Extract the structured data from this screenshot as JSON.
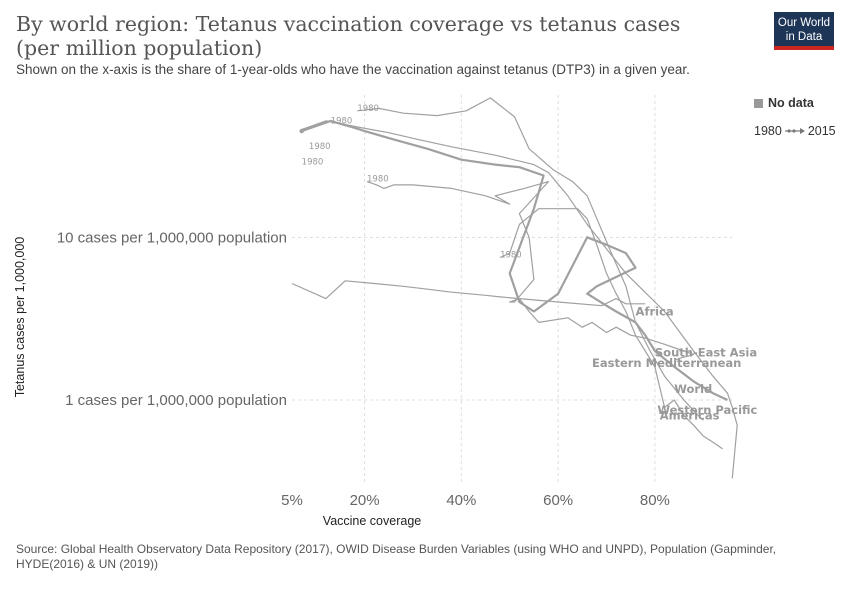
{
  "header": {
    "title": "By world region: Tetanus vaccination coverage vs tetanus cases (per million population)",
    "subtitle": "Shown on the x-axis is the share of 1-year-olds who have the vaccination against tetanus (DTP3) in a given year.",
    "logo_line1": "Our World",
    "logo_line2": "in Data",
    "logo_color": "#1d3557",
    "logo_accent": "#ce261e"
  },
  "legend": {
    "no_data_label": "No data",
    "no_data_color": "#999999",
    "time_start": "1980",
    "time_end": "2015"
  },
  "footer": {
    "source": "Source: Global Health Observatory Data Repository (2017), OWID Disease Burden Variables (using WHO and UNPD), Population (Gapminder, HYDE(2016) & UN (2019))"
  },
  "chart_data": {
    "type": "line",
    "title": "By world region: Tetanus vaccination coverage vs tetanus cases (per million population)",
    "xlabel": "Vaccine coverage",
    "ylabel": "Tetanus cases per 1,000,000",
    "x_scale": "linear",
    "y_scale": "log",
    "xlim": [
      5,
      98
    ],
    "ylim": [
      0.3,
      75
    ],
    "x_ticks": [
      {
        "value": 5,
        "label": "5%"
      },
      {
        "value": 20,
        "label": "20%"
      },
      {
        "value": 40,
        "label": "40%"
      },
      {
        "value": 60,
        "label": "60%"
      },
      {
        "value": 80,
        "label": "80%"
      }
    ],
    "y_ticks": [
      {
        "value": 10,
        "label": "10 cases per 1,000,000 population"
      },
      {
        "value": 1,
        "label": "1 cases per 1,000,000 population"
      }
    ],
    "grid": true,
    "line_color": "#a0a0a0",
    "start_year_label": "1980",
    "series": [
      {
        "name": "Africa",
        "label_at": [
          76,
          3.3
        ],
        "start_at": [
          8.5,
          35
        ],
        "x": [
          5,
          12,
          16,
          22,
          28,
          33,
          38,
          45,
          48,
          52,
          60,
          69,
          72,
          74,
          78
        ],
        "y": [
          5.2,
          4.2,
          5.4,
          5.2,
          5.0,
          4.8,
          4.6,
          4.4,
          4.3,
          4.2,
          4.0,
          3.8,
          4.2,
          3.9,
          3.9
        ]
      },
      {
        "name": "South-East Asia",
        "label_at": [
          80,
          1.85
        ],
        "start_at": [
          20.5,
          22
        ],
        "x": [
          20.5,
          22.5,
          24,
          26,
          30,
          38,
          45,
          50,
          47,
          53,
          58,
          52,
          54,
          55,
          51,
          50,
          52,
          54,
          56,
          62,
          65,
          67,
          70,
          72,
          75,
          78,
          82,
          86,
          88,
          85,
          84
        ],
        "y": [
          22,
          21,
          20,
          21,
          21,
          20,
          18,
          16,
          18,
          20,
          22,
          14,
          10,
          5.5,
          4.0,
          4.0,
          4.2,
          3.5,
          3.0,
          3.2,
          2.8,
          3.0,
          2.6,
          2.8,
          2.5,
          2.4,
          2.2,
          2.0,
          1.9,
          1.8,
          1.75
        ]
      },
      {
        "name": "Eastern Mediterranean",
        "label_at": [
          67,
          1.6
        ],
        "start_at": [
          7,
          28
        ],
        "x": [
          7,
          12,
          18,
          25,
          31,
          38,
          47,
          55,
          58,
          62,
          66,
          74,
          82,
          88,
          92,
          95,
          96,
          97,
          96
        ],
        "y": [
          46,
          52,
          48,
          44,
          40,
          36,
          32,
          28,
          25,
          18,
          12,
          6.0,
          3.5,
          2.0,
          1.4,
          1.1,
          0.9,
          0.7,
          0.33
        ]
      },
      {
        "name": "World",
        "label_at": [
          84,
          1.1
        ],
        "start_at": [
          13,
          50
        ],
        "x": [
          7,
          13,
          18,
          20,
          26,
          33,
          40,
          47,
          52,
          57,
          55,
          50,
          52,
          55,
          60,
          66,
          70,
          74,
          76,
          68,
          66,
          70,
          72,
          76,
          78,
          80,
          84,
          88,
          92,
          95
        ],
        "y": [
          45,
          52,
          47,
          45,
          40,
          35,
          30,
          28,
          27,
          24,
          15,
          6.0,
          4.0,
          3.5,
          4.5,
          10,
          9.0,
          8.0,
          6.5,
          5.0,
          4.5,
          3.8,
          3.5,
          3.0,
          2.5,
          2.0,
          1.6,
          1.3,
          1.1,
          1.0
        ]
      },
      {
        "name": "Western Pacific",
        "label_at": [
          80.5,
          0.82
        ],
        "start_at": [
          18.5,
          60
        ],
        "x": [
          18.5,
          23,
          28,
          35,
          41,
          46,
          51,
          54,
          59,
          63,
          66,
          71,
          74,
          76,
          79,
          82,
          86,
          89,
          90
        ],
        "y": [
          60,
          62,
          58,
          56,
          60,
          72,
          55,
          35,
          26,
          22,
          18,
          8.0,
          5.0,
          3.0,
          2.0,
          1.4,
          1.0,
          0.8,
          0.75
        ]
      },
      {
        "name": "Americas",
        "label_at": [
          81,
          0.76
        ],
        "start_at": [
          48,
          7.5
        ],
        "x": [
          48,
          50,
          52,
          56,
          60,
          64,
          66,
          68,
          70,
          72,
          74,
          76,
          78,
          80,
          81,
          82,
          84,
          86,
          88,
          90,
          92,
          94
        ],
        "y": [
          7.5,
          8.0,
          12,
          15,
          15,
          15,
          13,
          9.0,
          6.0,
          4.5,
          3.5,
          2.5,
          2.0,
          1.6,
          1.2,
          0.9,
          1.0,
          0.8,
          0.7,
          0.6,
          0.55,
          0.5
        ]
      }
    ]
  }
}
